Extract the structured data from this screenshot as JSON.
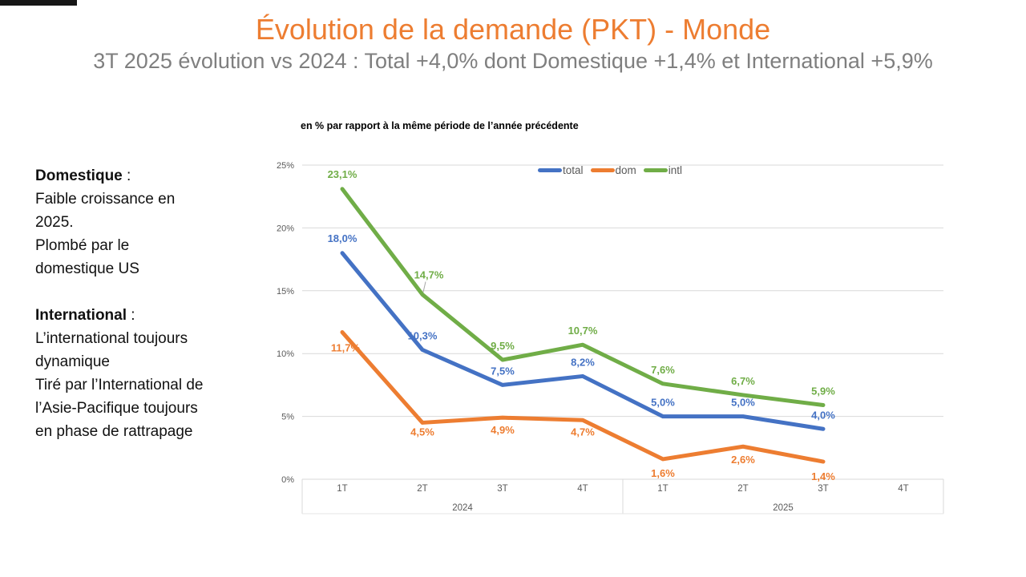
{
  "slide": {
    "title": "Évolution de la demande (PKT) - Monde",
    "subtitle": "3T 2025 évolution vs 2024 : Total +4,0% dont Domestique +1,4% et International +5,9%",
    "title_color": "#ED7D31",
    "subtitle_color": "#7F7F7F"
  },
  "notes": {
    "colon": " :",
    "block1_title": "Domestique",
    "block1_lines": [
      "Faible croissance en",
      "2025.",
      "Plombé par le",
      "domestique US"
    ],
    "block2_title": "International",
    "block2_lines": [
      "L’international toujours",
      "dynamique",
      "Tiré par l’International de",
      "l’Asie-Pacifique toujours",
      "en phase de rattrapage"
    ]
  },
  "chart_data": {
    "type": "line",
    "title": "en % par rapport à la même période de l’année précédente",
    "categories": [
      "1T",
      "2T",
      "3T",
      "4T",
      "1T",
      "2T",
      "3T",
      "4T"
    ],
    "year_groups": [
      {
        "label": "2024",
        "span": 4
      },
      {
        "label": "2025",
        "span": 4
      }
    ],
    "series": [
      {
        "name": "total",
        "color": "#4472C4",
        "values": [
          18.0,
          10.3,
          7.5,
          8.2,
          5.0,
          5.0,
          4.0
        ],
        "labels": [
          "18,0%",
          "10,3%",
          "7,5%",
          "8,2%",
          "5,0%",
          "5,0%",
          "4,0%"
        ]
      },
      {
        "name": "dom",
        "color": "#ED7D31",
        "values": [
          11.7,
          4.5,
          4.9,
          4.7,
          1.6,
          2.6,
          1.4
        ],
        "labels": [
          "11,7%",
          "4,5%",
          "4,9%",
          "4,7%",
          "1,6%",
          "2,6%",
          "1,4%"
        ]
      },
      {
        "name": "intl",
        "color": "#70AD47",
        "values": [
          23.1,
          14.7,
          9.5,
          10.7,
          7.6,
          6.7,
          5.9
        ],
        "labels": [
          "23,1%",
          "14,7%",
          "9,5%",
          "10,7%",
          "7,6%",
          "6,7%",
          "5,9%"
        ]
      }
    ],
    "y_ticks": [
      "0%",
      "5%",
      "10%",
      "15%",
      "20%",
      "25%"
    ],
    "ylim": [
      0,
      25
    ],
    "legend": [
      "total",
      "dom",
      "intl"
    ],
    "legend_position": "top",
    "grid": true,
    "gridline_color": "#D9D9D9",
    "axis_text_color": "#595959"
  }
}
